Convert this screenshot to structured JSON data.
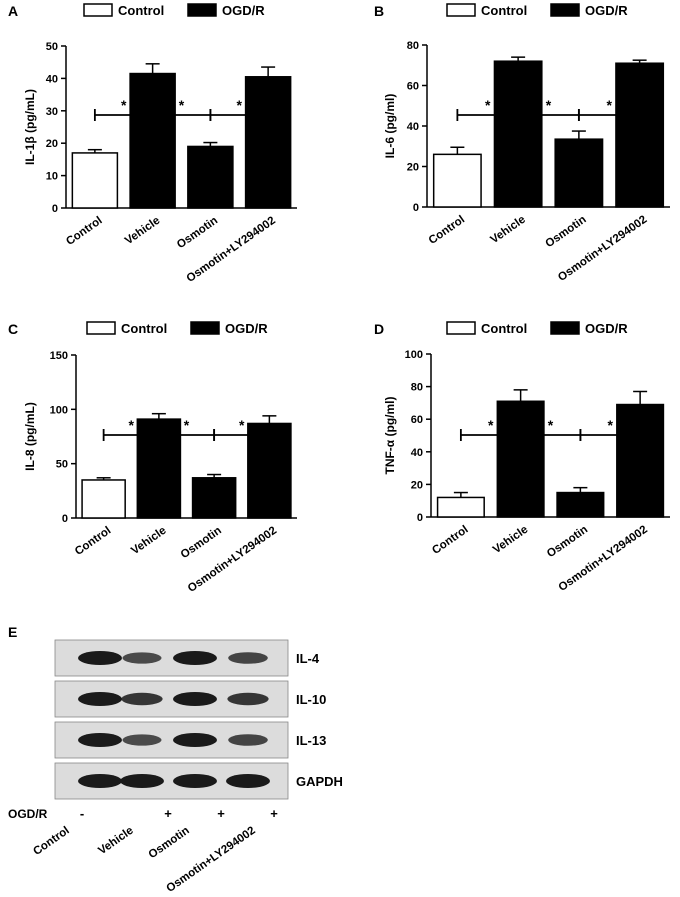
{
  "legend": {
    "control": "Control",
    "ogdr": "OGD/R"
  },
  "chart_data": [
    {
      "panel": "A",
      "type": "bar",
      "categories": [
        "Control",
        "Vehicle",
        "Osmotin",
        "Osmotin+LY294002"
      ],
      "values": [
        17,
        41.5,
        19,
        40.5
      ],
      "errors": [
        1,
        3,
        1.2,
        3
      ],
      "ylabel": "IL-1β  (pg/mL)",
      "ylim": [
        0,
        50
      ],
      "yticks": [
        0,
        10,
        20,
        30,
        40,
        50
      ],
      "legend": [
        "Control",
        "OGD/R"
      ],
      "fills": [
        "#ffffff",
        "#000000",
        "#000000",
        "#000000"
      ],
      "sig": "*"
    },
    {
      "panel": "B",
      "type": "bar",
      "categories": [
        "Control",
        "Vehicle",
        "Osmotin",
        "Osmotin+LY294002"
      ],
      "values": [
        26,
        72,
        33.5,
        71
      ],
      "errors": [
        3.5,
        2,
        4,
        1.5
      ],
      "ylabel": "IL-6 (pg/ml)",
      "ylim": [
        0,
        80
      ],
      "yticks": [
        0,
        20,
        40,
        60,
        80
      ],
      "legend": [
        "Control",
        "OGD/R"
      ],
      "fills": [
        "#ffffff",
        "#000000",
        "#000000",
        "#000000"
      ],
      "sig": "*"
    },
    {
      "panel": "C",
      "type": "bar",
      "categories": [
        "Control",
        "Vehicle",
        "Osmotin",
        "Osmotin+LY294002"
      ],
      "values": [
        35,
        91,
        37,
        87
      ],
      "errors": [
        2,
        5,
        3,
        7
      ],
      "ylabel": "IL-8  (pg/mL)",
      "ylim": [
        0,
        150
      ],
      "yticks": [
        0,
        50,
        100,
        150
      ],
      "legend": [
        "Control",
        "OGD/R"
      ],
      "fills": [
        "#ffffff",
        "#000000",
        "#000000",
        "#000000"
      ],
      "sig": "*"
    },
    {
      "panel": "D",
      "type": "bar",
      "categories": [
        "Control",
        "Vehicle",
        "Osmotin",
        "Osmotin+LY294002"
      ],
      "values": [
        12,
        71,
        15,
        69
      ],
      "errors": [
        3,
        7,
        3,
        8
      ],
      "ylabel": "TNF-α (pg/ml)",
      "ylim": [
        0,
        100
      ],
      "yticks": [
        0,
        20,
        40,
        60,
        80,
        100
      ],
      "legend": [
        "Control",
        "OGD/R"
      ],
      "fills": [
        "#ffffff",
        "#000000",
        "#000000",
        "#000000"
      ],
      "sig": "*"
    }
  ],
  "blot": {
    "panel": "E",
    "rows": [
      "IL-4",
      "IL-10",
      "IL-13",
      "GAPDH"
    ],
    "intensity": [
      [
        1,
        0.55,
        1,
        0.6
      ],
      [
        1,
        0.75,
        1,
        0.75
      ],
      [
        1,
        0.55,
        1,
        0.6
      ],
      [
        1,
        1,
        1,
        1
      ]
    ],
    "ogdr_label": "OGD/R",
    "ogdr_signs": [
      "-",
      "+",
      "+",
      "+"
    ],
    "lanes": [
      "Control",
      "Vehicle",
      "Osmotin",
      "Osmotin+LY294002"
    ]
  }
}
